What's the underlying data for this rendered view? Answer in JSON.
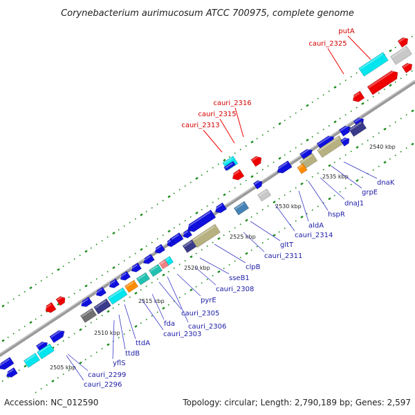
{
  "title": "Corynebacterium aurimucosum ATCC 700975, complete genome",
  "footer": {
    "accession": "Accession: NC_012590",
    "summary": "Topology: circular; Length: 2,790,189 bp; Genes: 2,597"
  },
  "colors": {
    "backbone": "#8c8c8c",
    "blue": "#1010dd",
    "red": "#ee0000",
    "cyan": "#00e5ee",
    "navy": "#3a3a8a",
    "khaki": "#b7b080",
    "orange": "#ff8c00",
    "grey": "#c8c8c8",
    "darkgrey": "#707070",
    "steel": "#4682b4",
    "teal": "#20c0b0",
    "pink": "#f08080",
    "dots": "#1a8a1a"
  },
  "kbp_ticks": [
    "2505 kbp",
    "2510 kbp",
    "2515 kbp",
    "2520 kbp",
    "2525 kbp",
    "2530 kbp",
    "2535 kbp",
    "2540 kbp"
  ],
  "red_labels": [
    "putA",
    "cauri_2325",
    "cauri_2316",
    "cauri_2315",
    "cauri_2313"
  ],
  "blue_labels": [
    "dnaK",
    "grpE",
    "dnaJ1",
    "hspR",
    "aldA",
    "cauri_2314",
    "gltT",
    "cauri_2311",
    "clpB",
    "sseB1",
    "cauri_2308",
    "pyrE",
    "cauri_2306",
    "cauri_2305",
    "cauri_2303",
    "fda",
    "ttdA",
    "ttdB",
    "yflS",
    "cauri_2299",
    "cauri_2296"
  ]
}
